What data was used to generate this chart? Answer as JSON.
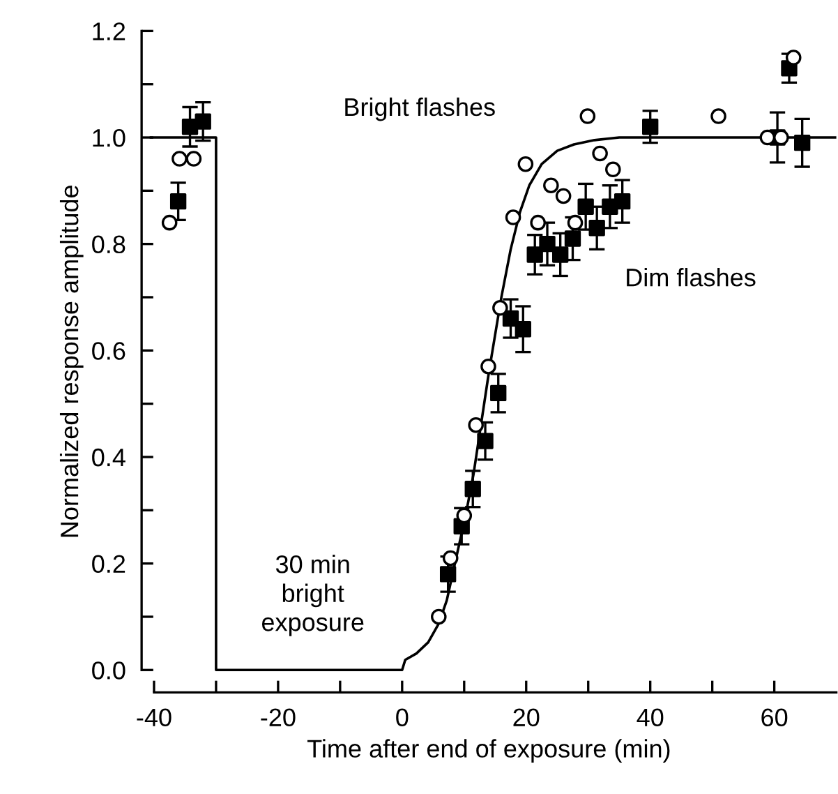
{
  "chart_data": {
    "type": "scatter",
    "xlabel": "Time after end of exposure (min)",
    "ylabel": "Normalized response amplitude",
    "xlim": [
      -42,
      70
    ],
    "ylim": [
      -0.042,
      1.2
    ],
    "xticks": [
      -40,
      {
        "value": -30,
        "label": null
      },
      -20,
      {
        "value": -10,
        "label": null
      },
      0,
      {
        "value": 10,
        "label": null
      },
      20,
      {
        "value": 30,
        "label": null
      },
      40,
      {
        "value": 50,
        "label": null
      },
      60
    ],
    "yticks": [
      {
        "value": 0,
        "label": "0.0"
      },
      {
        "value": 0.1,
        "label": null
      },
      {
        "value": 0.2,
        "label": "0.2"
      },
      {
        "value": 0.3,
        "label": null
      },
      {
        "value": 0.4,
        "label": "0.4"
      },
      {
        "value": 0.5,
        "label": null
      },
      {
        "value": 0.6,
        "label": "0.6"
      },
      {
        "value": 0.7,
        "label": null
      },
      {
        "value": 0.8,
        "label": "0.8"
      },
      {
        "value": 0.9,
        "label": null
      },
      {
        "value": 1.0,
        "label": "1.0"
      },
      {
        "value": 1.1,
        "label": null
      },
      {
        "value": 1.2,
        "label": "1.2"
      }
    ],
    "grid": false,
    "legend": false,
    "annotations": [
      "30 min\nbright\nexposure"
    ],
    "series": [
      {
        "type": "line",
        "color": "#000000",
        "marker": "none",
        "line_style": "solid",
        "x": [
          -40.5,
          -30,
          -30,
          0,
          0.5,
          2.3,
          4.2,
          5.9,
          7.2,
          8.7,
          10.2,
          11.5,
          14,
          16,
          17.5,
          19,
          20.5,
          22.5,
          25,
          27.7,
          31,
          35,
          70
        ],
        "values": [
          1.0,
          1.0,
          0,
          0,
          0.019,
          0.031,
          0.052,
          0.087,
          0.131,
          0.21,
          0.288,
          0.367,
          0.56,
          0.7,
          0.79,
          0.86,
          0.91,
          0.95,
          0.975,
          0.987,
          0.995,
          1.0,
          1.0
        ]
      },
      {
        "name": "Bright flashes",
        "color": "#000000",
        "marker": "circle",
        "x": [
          -37.5,
          -35.9,
          -33.6,
          5.9,
          7.8,
          10.0,
          11.9,
          13.9,
          15.8,
          17.9,
          19.9,
          21.9,
          24.0,
          26.0,
          27.9,
          29.9,
          31.9,
          34.0,
          51.0,
          58.9,
          61.1,
          63.1
        ],
        "values": [
          0.84,
          0.96,
          0.96,
          0.1,
          0.21,
          0.29,
          0.46,
          0.57,
          0.68,
          0.85,
          0.95,
          0.84,
          0.91,
          0.89,
          0.84,
          1.04,
          0.97,
          0.94,
          1.04,
          1.0,
          1.0,
          1.15
        ]
      },
      {
        "name": "Dim flashes",
        "color": "#000000",
        "marker": "square",
        "x": [
          -36.1,
          -34.2,
          -32.1,
          7.4,
          9.6,
          11.4,
          13.4,
          15.5,
          17.5,
          19.5,
          21.4,
          23.4,
          25.5,
          27.5,
          29.6,
          31.4,
          33.5,
          35.5,
          40.0,
          60.5,
          62.4,
          64.5
        ],
        "values": [
          0.88,
          1.02,
          1.03,
          0.18,
          0.27,
          0.34,
          0.43,
          0.52,
          0.66,
          0.64,
          0.78,
          0.8,
          0.78,
          0.81,
          0.87,
          0.83,
          0.87,
          0.88,
          1.02,
          1.0,
          1.13,
          0.99
        ],
        "errors": [
          0.035,
          0.037,
          0.036,
          0.033,
          0.034,
          0.034,
          0.035,
          0.036,
          0.036,
          0.043,
          0.037,
          0.04,
          0.04,
          0.04,
          0.043,
          0.04,
          0.04,
          0.04,
          0.03,
          0.047,
          0.027,
          0.045
        ]
      }
    ]
  }
}
